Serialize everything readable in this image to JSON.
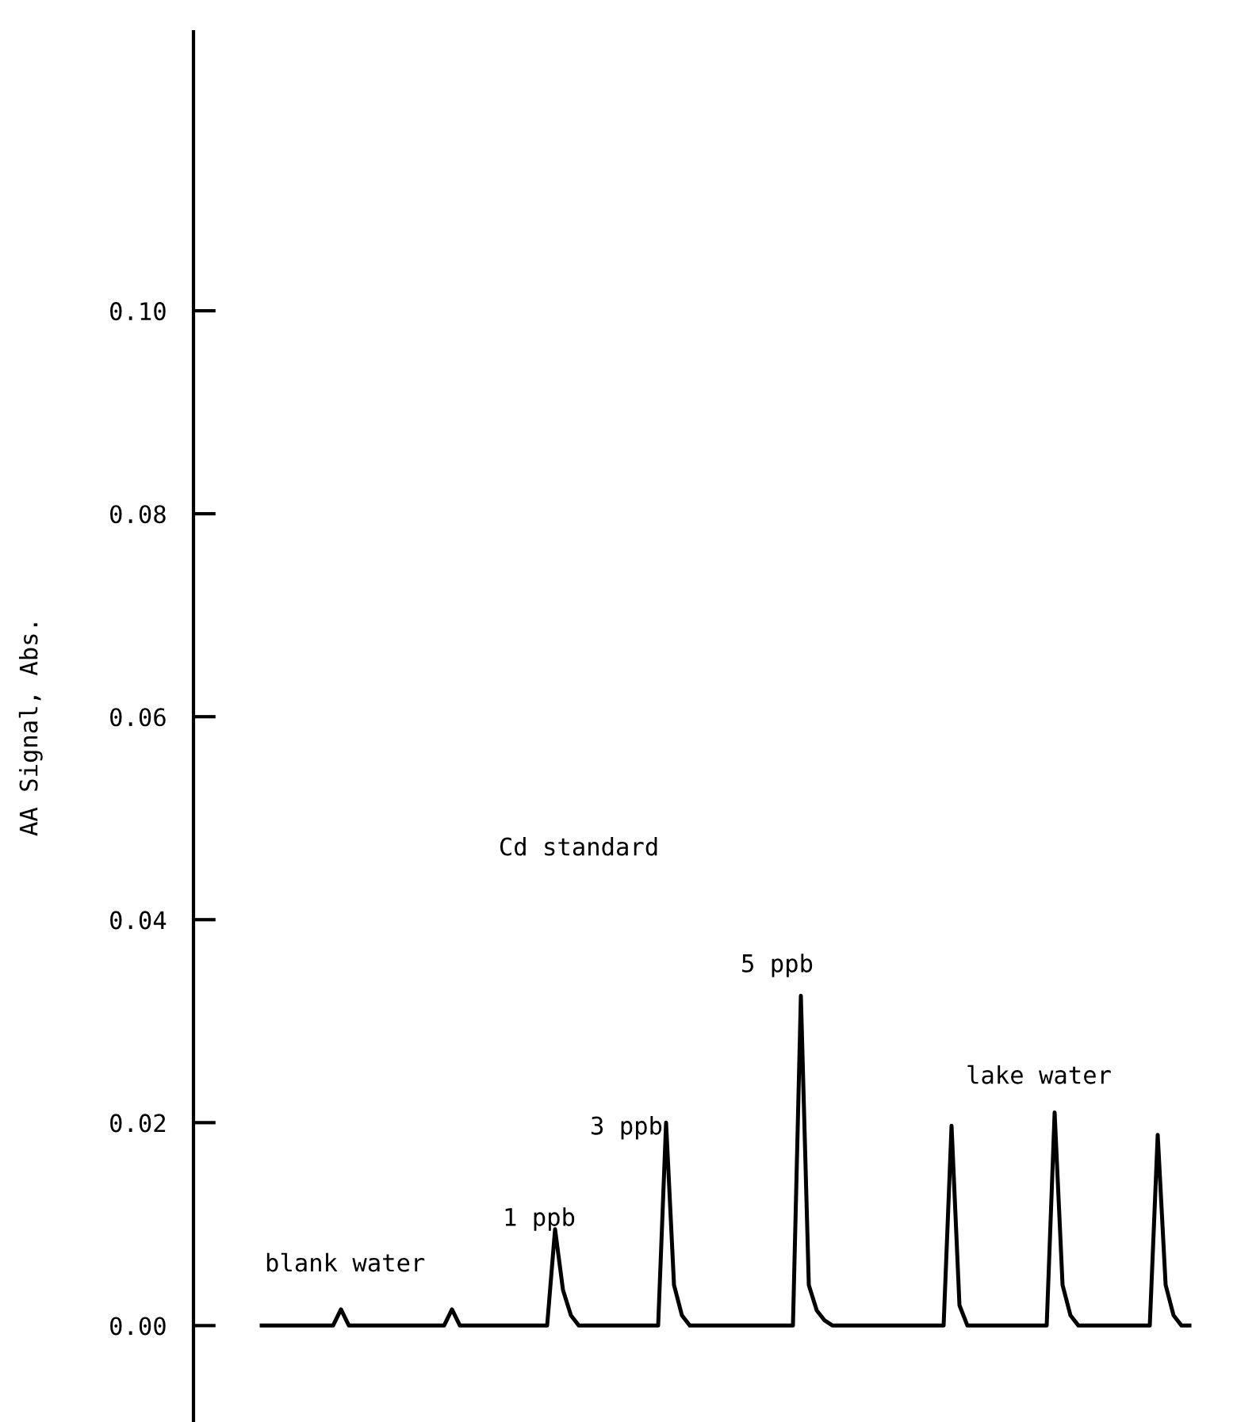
{
  "chart_data": {
    "type": "line",
    "ylabel": "AA Signal, Abs.",
    "categories": [
      null,
      null,
      null,
      null,
      null,
      null,
      null,
      null,
      null,
      null,
      null,
      null,
      null,
      null,
      null,
      null,
      null,
      null,
      null,
      null,
      null,
      null,
      null,
      null,
      null,
      null,
      null,
      null,
      null,
      null,
      null,
      null,
      null,
      null,
      null,
      null,
      null,
      null,
      null,
      null,
      null,
      null,
      null,
      null,
      null,
      null,
      null,
      null,
      null,
      null,
      null,
      null,
      null,
      null,
      null,
      null,
      null,
      null,
      null,
      null,
      null,
      null,
      null,
      null,
      null,
      null,
      null,
      null,
      null,
      null,
      null,
      null,
      null,
      null,
      null,
      null,
      null,
      null,
      null,
      null,
      null,
      null,
      null,
      null,
      null,
      null,
      null,
      null,
      null,
      null,
      null,
      null,
      null,
      null,
      null,
      null,
      null,
      null,
      null,
      null,
      null,
      null,
      null,
      null,
      null,
      null,
      null,
      null,
      null,
      null,
      null,
      null,
      null,
      null,
      null,
      null,
      null,
      null,
      null,
      null,
      null
    ],
    "series": [
      {
        "color": "#000000",
        "values": [
          null,
          0,
          0,
          0,
          0,
          0,
          0,
          0,
          0,
          0,
          0,
          0.0016,
          0,
          0,
          0,
          0,
          0,
          0,
          0,
          0,
          0,
          0,
          0,
          0,
          0,
          0.0016,
          0,
          0,
          0,
          0,
          0,
          0,
          0,
          0,
          0,
          0,
          0,
          0,
          0.0095,
          0.0035,
          0.001,
          0,
          0,
          0,
          0,
          0,
          0,
          0,
          0,
          0,
          0,
          0,
          0.02,
          0.004,
          0.001,
          0,
          0,
          0,
          0,
          0,
          0,
          0,
          0,
          0,
          0,
          0,
          0,
          0,
          0,
          0.0325,
          0.004,
          0.0015,
          0.0005,
          0,
          0,
          0,
          0,
          0,
          0,
          0,
          0,
          0,
          0,
          0,
          0,
          0,
          0,
          0,
          0.0197,
          0.002,
          0,
          0,
          0,
          0,
          0,
          0,
          0,
          0,
          0,
          0,
          0,
          0.021,
          0.004,
          0.001,
          0,
          0,
          0,
          0,
          0,
          0,
          0,
          0,
          0,
          0,
          0.0188,
          0.004,
          0.001,
          0,
          0,
          null,
          null
        ]
      }
    ],
    "ylim": [
      -0.0095,
      0.1275
    ],
    "yticks": [
      {
        "value": 0,
        "label": "0.00"
      },
      {
        "value": 0.02,
        "label": "0.02"
      },
      {
        "value": 0.04,
        "label": "0.04"
      },
      {
        "value": 0.06,
        "label": "0.06"
      },
      {
        "value": 0.08,
        "label": "0.08"
      },
      {
        "value": 0.1,
        "label": "0.10"
      }
    ],
    "tick_labels": "y",
    "grid": false,
    "legend": false,
    "marker": "none",
    "line_style": "solid",
    "annotations": [
      "blank water",
      "Cd standard",
      "1 ppb",
      "3 ppb",
      "5 ppb",
      "lake water"
    ]
  }
}
